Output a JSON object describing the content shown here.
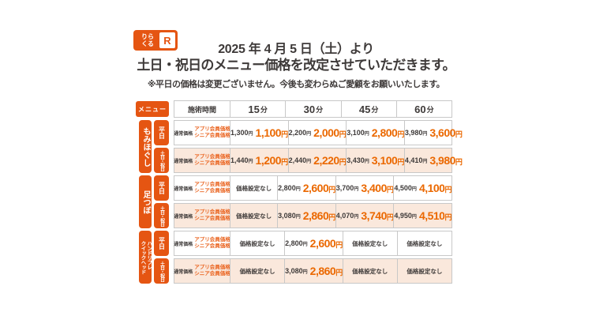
{
  "colors": {
    "orange": "#e55512",
    "price_orange": "#eb6800",
    "member_orange": "#ea6420",
    "peach": "#fae8dc",
    "border": "#c8c8c8",
    "dark": "#3e3a39"
  },
  "logo": {
    "brand": "りらくる",
    "line1": "りら",
    "line2": "くる",
    "mark": "R"
  },
  "header": {
    "title_line1": "2025 年 4 月 5 日（土）より",
    "title_line2": "土日・祝日のメニュー価格を改定させていただきます。",
    "note": "※平日の価格は変更ございません。今後も変わらぬご愛顧をお願いいたします。"
  },
  "table": {
    "menu_badge": "メニュー",
    "time_header": "施術時間",
    "durations": [
      "15",
      "30",
      "45",
      "60"
    ],
    "minute_suffix": "分",
    "yen": "円",
    "regular_label": "通常価格",
    "member_labels": [
      "アプリ会員価格",
      "シニア会員価格"
    ],
    "no_price": "価格設定なし",
    "categories": [
      {
        "name": "もみほぐし",
        "rows": [
          {
            "day": "平日",
            "weekend": false,
            "prices": [
              {
                "regular": "1,300",
                "member": "1,100"
              },
              {
                "regular": "2,200",
                "member": "2,000"
              },
              {
                "regular": "3,100",
                "member": "2,800"
              },
              {
                "regular": "3,980",
                "member": "3,600"
              }
            ]
          },
          {
            "day": "土日・祝日",
            "weekend": true,
            "prices": [
              {
                "regular": "1,440",
                "member": "1,200"
              },
              {
                "regular": "2,440",
                "member": "2,220"
              },
              {
                "regular": "3,430",
                "member": "3,100"
              },
              {
                "regular": "4,410",
                "member": "3,980"
              }
            ]
          }
        ]
      },
      {
        "name": "足つぼ",
        "rows": [
          {
            "day": "平日",
            "weekend": false,
            "prices": [
              null,
              {
                "regular": "2,800",
                "member": "2,600"
              },
              {
                "regular": "3,700",
                "member": "3,400"
              },
              {
                "regular": "4,500",
                "member": "4,100"
              }
            ]
          },
          {
            "day": "土日・祝日",
            "weekend": true,
            "prices": [
              null,
              {
                "regular": "3,080",
                "member": "2,860"
              },
              {
                "regular": "4,070",
                "member": "3,740"
              },
              {
                "regular": "4,950",
                "member": "4,510"
              }
            ]
          }
        ]
      },
      {
        "name": "ハンドリフレ\nクイックヘッド",
        "rows": [
          {
            "day": "平日",
            "weekend": false,
            "prices": [
              null,
              {
                "regular": "2,800",
                "member": "2,600"
              },
              null,
              null
            ]
          },
          {
            "day": "土日・祝日",
            "weekend": true,
            "prices": [
              null,
              {
                "regular": "3,080",
                "member": "2,860"
              },
              null,
              null
            ]
          }
        ]
      }
    ]
  }
}
